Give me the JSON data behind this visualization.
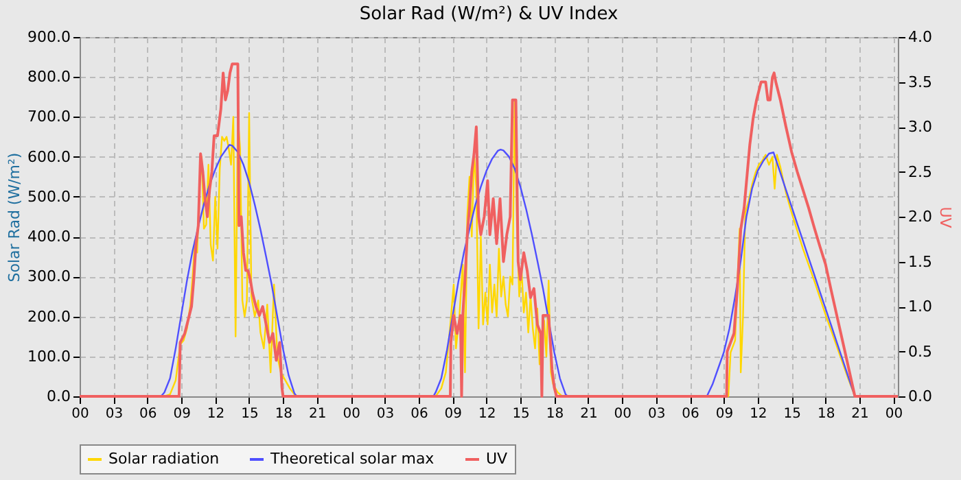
{
  "chart_data": {
    "type": "line",
    "title": "Solar Rad (W/m²) &  UV Index",
    "ylabel": "Solar Rad (W/m²)",
    "y2label": "UV",
    "xlim": [
      0,
      72.4
    ],
    "xticks": [
      {
        "value": 0,
        "label": "00"
      },
      {
        "value": 3,
        "label": "03"
      },
      {
        "value": 6,
        "label": "06"
      },
      {
        "value": 9,
        "label": "09"
      },
      {
        "value": 12,
        "label": "12"
      },
      {
        "value": 15,
        "label": "15"
      },
      {
        "value": 18,
        "label": "18"
      },
      {
        "value": 21,
        "label": "21"
      },
      {
        "value": 24,
        "label": "00"
      },
      {
        "value": 27,
        "label": "03"
      },
      {
        "value": 30,
        "label": "06"
      },
      {
        "value": 33,
        "label": "09"
      },
      {
        "value": 36,
        "label": "12"
      },
      {
        "value": 39,
        "label": "15"
      },
      {
        "value": 42,
        "label": "18"
      },
      {
        "value": 45,
        "label": "21"
      },
      {
        "value": 48,
        "label": "00"
      },
      {
        "value": 51,
        "label": "03"
      },
      {
        "value": 54,
        "label": "06"
      },
      {
        "value": 57,
        "label": "09"
      },
      {
        "value": 60,
        "label": "12"
      },
      {
        "value": 63,
        "label": "15"
      },
      {
        "value": 66,
        "label": "18"
      },
      {
        "value": 69,
        "label": "21"
      },
      {
        "value": 72,
        "label": "00"
      }
    ],
    "ylim": [
      0,
      900
    ],
    "yticks": [
      {
        "value": 0,
        "label": "0.0"
      },
      {
        "value": 100,
        "label": "100.0"
      },
      {
        "value": 200,
        "label": "200.0"
      },
      {
        "value": 300,
        "label": "300.0"
      },
      {
        "value": 400,
        "label": "400.0"
      },
      {
        "value": 500,
        "label": "500.0"
      },
      {
        "value": 600,
        "label": "600.0"
      },
      {
        "value": 700,
        "label": "700.0"
      },
      {
        "value": 800,
        "label": "800.0"
      },
      {
        "value": 900,
        "label": "900.0"
      }
    ],
    "y2lim": [
      0,
      4
    ],
    "y2ticks": [
      {
        "value": 0,
        "label": "0.0"
      },
      {
        "value": 0.5,
        "label": "0.5"
      },
      {
        "value": 1,
        "label": "1.0"
      },
      {
        "value": 1.5,
        "label": "1.5"
      },
      {
        "value": 2,
        "label": "2.0"
      },
      {
        "value": 2.5,
        "label": "2.5"
      },
      {
        "value": 3,
        "label": "3.0"
      },
      {
        "value": 3.5,
        "label": "3.5"
      },
      {
        "value": 4,
        "label": "4.0"
      }
    ],
    "grid": true,
    "legend": "bottom",
    "series": [
      {
        "name": "Solar radiation",
        "color": "#ffd700",
        "x": [
          0,
          7.5,
          8.0,
          8.5,
          8.9,
          9.2,
          9.5,
          9.8,
          10.0,
          10.2,
          10.4,
          10.6,
          10.8,
          11.0,
          11.2,
          11.4,
          11.6,
          11.8,
          12.0,
          12.2,
          12.4,
          12.6,
          12.8,
          13.0,
          13.2,
          13.4,
          13.6,
          13.8,
          14.0,
          14.2,
          14.4,
          14.6,
          14.8,
          15.0,
          15.2,
          15.5,
          15.8,
          16.0,
          16.3,
          16.6,
          16.9,
          17.2,
          17.5,
          17.8,
          18.2,
          18.6,
          19.0,
          19.3,
          24,
          31.5,
          32,
          32.4,
          32.8,
          33.1,
          33.3,
          33.6,
          33.9,
          34.1,
          34.3,
          34.5,
          34.7,
          34.9,
          35.1,
          35.3,
          35.5,
          35.7,
          35.9,
          36.1,
          36.3,
          36.5,
          36.7,
          36.9,
          37.1,
          37.3,
          37.5,
          37.7,
          37.9,
          38.1,
          38.3,
          38.5,
          38.7,
          38.9,
          39.1,
          39.3,
          39.5,
          39.7,
          39.9,
          40.1,
          40.3,
          40.5,
          40.7,
          40.9,
          41.1,
          41.3,
          41.5,
          41.7,
          41.9,
          42.3,
          42.7,
          48,
          57.4,
          57.6,
          58,
          58.2,
          58.4,
          58.5,
          58.7,
          58.9,
          59.2,
          59.5,
          59.8,
          60.1,
          60.4,
          60.7,
          61.0,
          61.3,
          61.5,
          61.7,
          62,
          62.5,
          63,
          64,
          65,
          66,
          67,
          68,
          68.6,
          72.4
        ],
        "values": [
          0,
          0,
          5,
          40,
          130,
          140,
          170,
          230,
          300,
          390,
          360,
          520,
          600,
          420,
          430,
          580,
          380,
          340,
          500,
          370,
          570,
          650,
          640,
          650,
          620,
          580,
          700,
          150,
          700,
          620,
          240,
          200,
          240,
          710,
          250,
          200,
          240,
          160,
          120,
          230,
          60,
          280,
          100,
          60,
          40,
          20,
          5,
          0,
          0,
          0,
          20,
          60,
          180,
          280,
          120,
          200,
          330,
          60,
          450,
          550,
          400,
          610,
          520,
          170,
          400,
          180,
          260,
          180,
          330,
          210,
          280,
          200,
          370,
          250,
          300,
          230,
          200,
          300,
          280,
          740,
          420,
          250,
          320,
          210,
          260,
          160,
          250,
          170,
          120,
          220,
          80,
          160,
          190,
          100,
          290,
          60,
          30,
          10,
          0,
          0,
          0,
          110,
          140,
          280,
          420,
          60,
          200,
          460,
          490,
          530,
          560,
          580,
          590,
          605,
          580,
          600,
          520,
          605,
          575,
          510,
          460,
          370,
          290,
          205,
          125,
          45,
          0,
          0
        ]
      },
      {
        "name": "Theoretical solar max",
        "color": "#4f4fff",
        "x": [
          0,
          7.2,
          7.5,
          8,
          8.5,
          9,
          9.5,
          10,
          10.5,
          11,
          11.5,
          12,
          12.5,
          13,
          13.25,
          13.5,
          14,
          14.5,
          15,
          15.5,
          16,
          16.5,
          17,
          17.5,
          18,
          18.5,
          19,
          19.2,
          31.3,
          31.5,
          32,
          32.5,
          33,
          33.5,
          34,
          34.5,
          35,
          35.5,
          36,
          36.5,
          37,
          37.25,
          37.5,
          38,
          38.5,
          39,
          39.5,
          40,
          40.5,
          41,
          41.5,
          42,
          42.5,
          43,
          43.2,
          55.5,
          56,
          56.5,
          57,
          57.5,
          58,
          58.5,
          59,
          59.5,
          60,
          60.5,
          61,
          61.4,
          62,
          62.5,
          63,
          63.5,
          64,
          64.5,
          65,
          65.5,
          66,
          66.5,
          67,
          67.5,
          68,
          68.6,
          72.4
        ],
        "values": [
          0,
          0,
          10,
          45,
          120,
          205,
          290,
          365,
          425,
          482,
          530,
          568,
          600,
          620,
          630,
          628,
          612,
          580,
          536,
          480,
          418,
          350,
          279,
          198,
          118,
          52,
          8,
          0,
          0,
          10,
          45,
          115,
          200,
          285,
          360,
          420,
          478,
          525,
          565,
          595,
          615,
          618,
          616,
          600,
          570,
          525,
          470,
          408,
          340,
          270,
          190,
          110,
          45,
          5,
          0,
          0,
          30,
          70,
          110,
          170,
          250,
          340,
          450,
          520,
          565,
          590,
          608,
          611,
          560,
          517,
          475,
          432,
          390,
          347,
          305,
          262,
          220,
          178,
          135,
          93,
          50,
          0,
          0
        ]
      },
      {
        "name": "UV",
        "color": "#f06060",
        "axis": "y2",
        "x": [
          0,
          8.8,
          8.9,
          9.3,
          9.6,
          9.9,
          10.1,
          10.3,
          10.5,
          10.7,
          10.9,
          11.1,
          11.3,
          11.5,
          11.7,
          11.9,
          12.2,
          12.5,
          12.7,
          12.9,
          13.1,
          13.3,
          13.5,
          13.8,
          14.0,
          14.1,
          14.3,
          14.5,
          14.7,
          14.9,
          15.1,
          15.3,
          15.6,
          15.9,
          16.2,
          16.5,
          16.8,
          17.1,
          17.4,
          17.7,
          17.9,
          18.0,
          32.8,
          32.85,
          33.1,
          33.4,
          33.7,
          33.8,
          33.9,
          34.1,
          34.3,
          34.5,
          34.7,
          34.9,
          35.1,
          35.3,
          35.5,
          35.8,
          36.1,
          36.3,
          36.6,
          36.9,
          37.2,
          37.5,
          37.8,
          38.1,
          38.3,
          38.6,
          38.8,
          39.0,
          39.3,
          39.6,
          39.9,
          40.2,
          40.5,
          40.8,
          40.9,
          41.0,
          41.2,
          41.5,
          41.8,
          42.0,
          42.2,
          57.25,
          57.3,
          57.6,
          57.9,
          58.2,
          58.5,
          58.8,
          59,
          59.3,
          59.6,
          59.9,
          60.3,
          60.7,
          60.9,
          61.1,
          61.3,
          61.45,
          61.6,
          62,
          62.5,
          63,
          63.5,
          64,
          64.5,
          65,
          65.5,
          66,
          66.5,
          67,
          67.5,
          68,
          68.6,
          72.4
        ],
        "values": [
          0,
          0,
          0.6,
          0.7,
          0.85,
          1.0,
          1.3,
          1.7,
          1.9,
          2.7,
          2.5,
          2.2,
          2.0,
          2.3,
          2.5,
          2.9,
          2.9,
          3.2,
          3.6,
          3.3,
          3.4,
          3.6,
          3.7,
          3.7,
          3.7,
          1.9,
          2.0,
          1.6,
          1.4,
          1.4,
          1.3,
          1.15,
          1.0,
          0.9,
          1.0,
          0.8,
          0.6,
          0.7,
          0.4,
          0.6,
          0.1,
          0,
          0,
          0.6,
          0.9,
          0.7,
          0.9,
          0,
          0.9,
          1.3,
          1.8,
          2.1,
          2.5,
          2.7,
          3.0,
          2.0,
          1.8,
          2.0,
          2.4,
          1.8,
          2.2,
          1.7,
          2.2,
          1.5,
          1.8,
          2.0,
          3.3,
          3.3,
          1.5,
          1.3,
          1.6,
          1.4,
          1.1,
          1.2,
          0.8,
          0.7,
          0,
          0.9,
          0.9,
          0.9,
          0.3,
          0.1,
          0,
          0,
          0.5,
          0.6,
          0.7,
          1.2,
          1.86,
          2.1,
          2.38,
          2.8,
          3.1,
          3.3,
          3.5,
          3.5,
          3.3,
          3.3,
          3.55,
          3.6,
          3.5,
          3.3,
          3.0,
          2.72,
          2.5,
          2.3,
          2.1,
          1.88,
          1.67,
          1.47,
          1.18,
          0.9,
          0.62,
          0.34,
          0,
          0
        ]
      }
    ]
  }
}
